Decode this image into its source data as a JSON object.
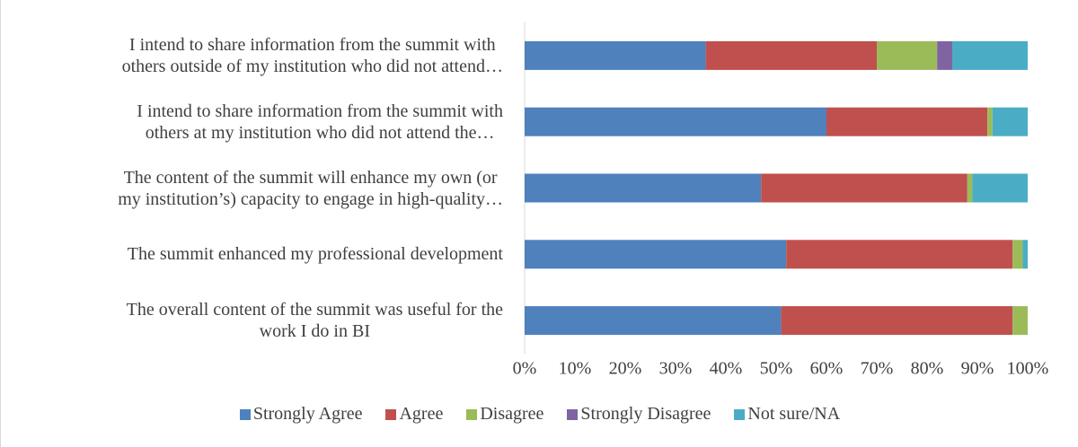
{
  "chart_data": {
    "type": "stacked_barh",
    "categories": [
      "I intend to share information from the summit with\nothers outside of my institution who did not attend…",
      "I intend to share information from the summit with\nothers at my institution who did not attend the…",
      "The content of the summit will enhance my own (or\nmy institution’s) capacity to engage in high-quality…",
      "The summit enhanced my professional development",
      "The overall content of the summit was useful for the\nwork I do in BI"
    ],
    "series": [
      {
        "name": "Strongly Agree",
        "color": "#4f81bd",
        "values": [
          36,
          60,
          47,
          52,
          51
        ]
      },
      {
        "name": "Agree",
        "color": "#c0504d",
        "values": [
          34,
          32,
          41,
          45,
          46
        ]
      },
      {
        "name": "Disagree",
        "color": "#9bbb59",
        "values": [
          12,
          1,
          1,
          2,
          3
        ]
      },
      {
        "name": "Strongly Disagree",
        "color": "#8064a2",
        "values": [
          3,
          0,
          0,
          0,
          0
        ]
      },
      {
        "name": "Not sure/NA",
        "color": "#4bacc6",
        "values": [
          15,
          7,
          11,
          1,
          0
        ]
      }
    ],
    "xlim": [
      0,
      100
    ],
    "xticks": [
      {
        "value": 0,
        "label": "0%"
      },
      {
        "value": 10,
        "label": "10%"
      },
      {
        "value": 20,
        "label": "20%"
      },
      {
        "value": 30,
        "label": "30%"
      },
      {
        "value": 40,
        "label": "40%"
      },
      {
        "value": 50,
        "label": "50%"
      },
      {
        "value": 60,
        "label": "60%"
      },
      {
        "value": 70,
        "label": "70%"
      },
      {
        "value": 80,
        "label": "80%"
      },
      {
        "value": 90,
        "label": "90%"
      },
      {
        "value": 100,
        "label": "100%"
      }
    ],
    "legend": "bottom"
  }
}
